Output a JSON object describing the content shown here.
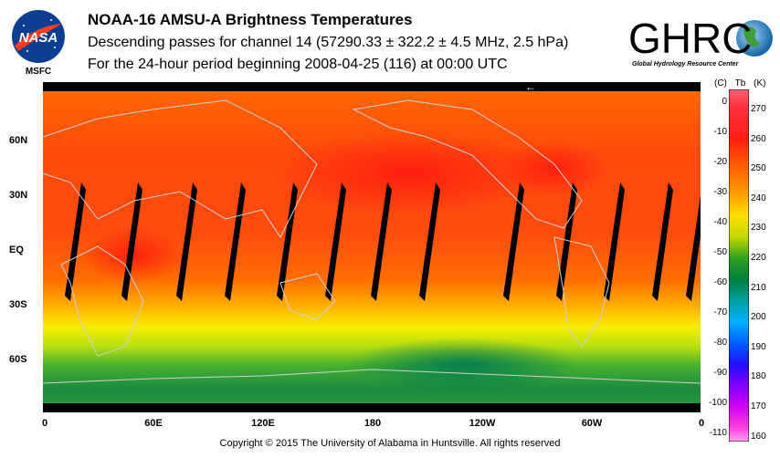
{
  "header": {
    "title": "NOAA-16 AMSU-A Brightness Temperatures",
    "subtitle": "Descending passes for channel 14 (57290.33 ± 322.2 ± 4.5 MHz, 2.5 hPa)",
    "period": "For the 24-hour period beginning 2008-04-25 (116) at 00:00 UTC"
  },
  "logos": {
    "left_text": "NASA",
    "left_caption": "MSFC",
    "right_text": "GHRC",
    "right_caption": "Global Hydrology Resource Center"
  },
  "map": {
    "lat_labels": [
      "60N",
      "30N",
      "EQ",
      "30S",
      "60S"
    ],
    "lon_labels": [
      "0",
      "60E",
      "120E",
      "180",
      "120W",
      "60W",
      "0"
    ],
    "orbit_direction_marker": "←",
    "colors": {
      "warm": "#ff3a10",
      "mid": "#ff7a00",
      "yellow": "#f4f000",
      "green": "#1a8a40",
      "gap": "#000000",
      "coastline": "#c8c8c8"
    }
  },
  "scale": {
    "header_c": "(C)",
    "header_tb": "Tb",
    "header_k": "(K)",
    "celsius_ticks": [
      "0",
      "-10",
      "-20",
      "-30",
      "-40",
      "-50",
      "-60",
      "-70",
      "-80",
      "-90",
      "-100",
      "-110"
    ],
    "kelvin_ticks": [
      "270",
      "260",
      "250",
      "240",
      "230",
      "220",
      "210",
      "200",
      "190",
      "180",
      "170",
      "160"
    ]
  },
  "footer": {
    "copyright": "Copyright © 2015 The University of Alabama in Huntsville.  All rights reserved"
  }
}
